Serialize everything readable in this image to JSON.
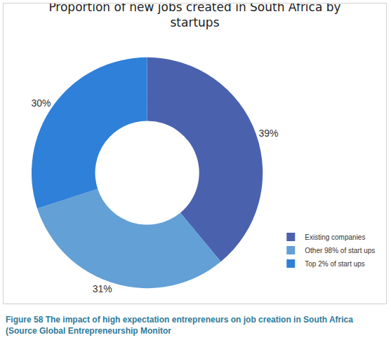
{
  "chart_data": {
    "type": "pie",
    "title": "Proportion of new jobs created in South Africa by startups",
    "caption": "Figure 58 The impact of high expectation entrepreneurs on job creation in South Africa (Source Global Entrepreneurship Monitor",
    "categories": [
      "Existing companies",
      "Other 98% of start ups",
      "Top 2% of start ups"
    ],
    "values": [
      39,
      31,
      30
    ],
    "value_labels": [
      "39%",
      "31%",
      "30%"
    ],
    "colors": [
      "#4a62ae",
      "#62a0d6",
      "#2f80d8"
    ],
    "data_labels": true,
    "legend": "bottom right"
  }
}
